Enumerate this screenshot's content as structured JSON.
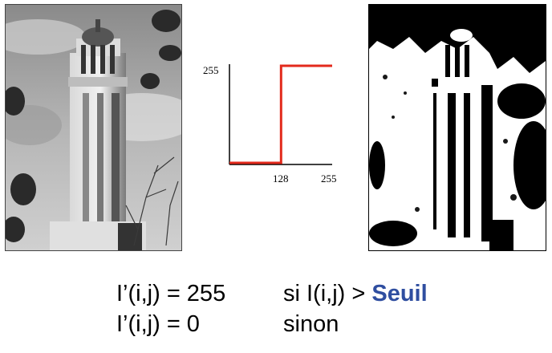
{
  "images": {
    "original": {
      "name": "tower-grayscale-photo"
    },
    "thresholded": {
      "name": "tower-binary-photo"
    }
  },
  "chart_data": {
    "type": "line",
    "x": [
      0,
      128,
      128,
      255
    ],
    "y": [
      0,
      0,
      255,
      255
    ],
    "xlim": [
      0,
      255
    ],
    "ylim": [
      0,
      255
    ],
    "x_ticks": [
      "128",
      "255"
    ],
    "y_ticks": [
      "255"
    ],
    "line_color": "#e32a1c",
    "grid": false
  },
  "formulas": {
    "row1": {
      "lhs": "I’(i,j) = 255",
      "rhs_prefix": "si I(i,j) > ",
      "rhs_accent": "Seuil"
    },
    "row2": {
      "lhs": "I’(i,j) = 0",
      "rhs": "sinon"
    },
    "accent_color": "#2f4ea0"
  }
}
